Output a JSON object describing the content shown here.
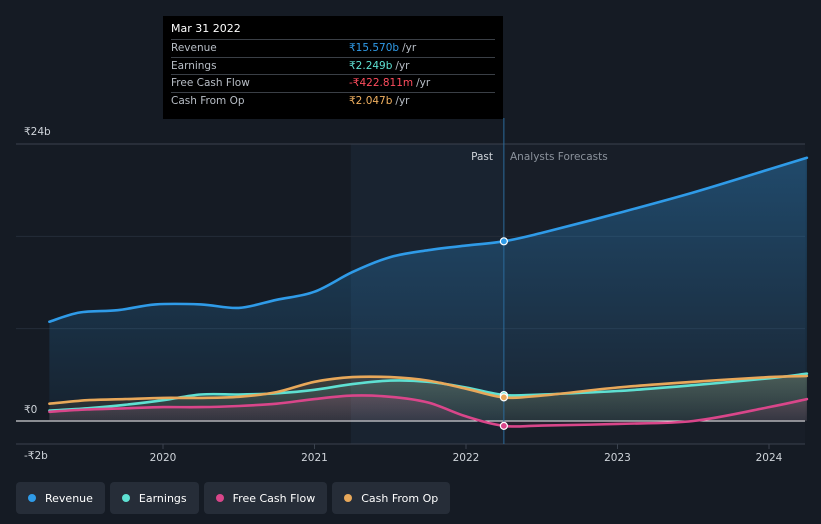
{
  "tooltip": {
    "date": "Mar 31 2022",
    "rows": [
      {
        "label": "Revenue",
        "value": "₹15.570b",
        "unit": "/yr",
        "color": "#2f9be8"
      },
      {
        "label": "Earnings",
        "value": "₹2.249b",
        "unit": "/yr",
        "color": "#5ee0d2"
      },
      {
        "label": "Free Cash Flow",
        "value": "-₹422.811m",
        "unit": "/yr",
        "color": "#ff4d5e"
      },
      {
        "label": "Cash From Op",
        "value": "₹2.047b",
        "unit": "/yr",
        "color": "#f0b060"
      }
    ]
  },
  "labels": {
    "past": "Past",
    "forecast": "Analysts Forecasts"
  },
  "legend": [
    {
      "label": "Revenue",
      "color": "#2f9be8"
    },
    {
      "label": "Earnings",
      "color": "#5ee0d2"
    },
    {
      "label": "Free Cash Flow",
      "color": "#d9468a"
    },
    {
      "label": "Cash From Op",
      "color": "#e8a85a"
    }
  ],
  "chart_data": {
    "type": "line",
    "title": "",
    "xlabel": "",
    "ylabel": "",
    "unit": "₹ billions",
    "ylim": [
      -2,
      24
    ],
    "xlim": [
      2019.25,
      2024.25
    ],
    "y_tick_labels": [
      {
        "value": 24,
        "label": "₹24b"
      },
      {
        "value": 0,
        "label": "₹0"
      },
      {
        "value": -2,
        "label": "-₹2b"
      }
    ],
    "x_tick_labels": [
      {
        "value": 2020,
        "label": "2020"
      },
      {
        "value": 2021,
        "label": "2021"
      },
      {
        "value": 2022,
        "label": "2022"
      },
      {
        "value": 2023,
        "label": "2023"
      },
      {
        "value": 2024,
        "label": "2024"
      }
    ],
    "past_start": 2021.24,
    "past_end": 2022.25,
    "highlight_x": 2022.25,
    "series": [
      {
        "name": "Revenue",
        "color": "#2f9be8",
        "points": [
          [
            2019.25,
            8.6
          ],
          [
            2019.45,
            9.4
          ],
          [
            2019.7,
            9.6
          ],
          [
            2019.95,
            10.1
          ],
          [
            2020.25,
            10.1
          ],
          [
            2020.5,
            9.8
          ],
          [
            2020.75,
            10.5
          ],
          [
            2021.0,
            11.2
          ],
          [
            2021.25,
            12.9
          ],
          [
            2021.5,
            14.2
          ],
          [
            2021.75,
            14.8
          ],
          [
            2022.0,
            15.2
          ],
          [
            2022.25,
            15.57
          ],
          [
            2022.5,
            16.3
          ],
          [
            2023.0,
            18.0
          ],
          [
            2023.5,
            19.8
          ],
          [
            2024.0,
            21.8
          ],
          [
            2024.25,
            22.8
          ]
        ]
      },
      {
        "name": "Earnings",
        "color": "#5ee0d2",
        "points": [
          [
            2019.25,
            0.9
          ],
          [
            2019.5,
            1.1
          ],
          [
            2019.75,
            1.4
          ],
          [
            2020.0,
            1.8
          ],
          [
            2020.25,
            2.3
          ],
          [
            2020.5,
            2.3
          ],
          [
            2020.75,
            2.4
          ],
          [
            2021.0,
            2.7
          ],
          [
            2021.25,
            3.2
          ],
          [
            2021.5,
            3.5
          ],
          [
            2021.75,
            3.4
          ],
          [
            2022.0,
            2.9
          ],
          [
            2022.25,
            2.249
          ],
          [
            2022.5,
            2.3
          ],
          [
            2023.0,
            2.6
          ],
          [
            2023.5,
            3.1
          ],
          [
            2024.0,
            3.7
          ],
          [
            2024.25,
            4.1
          ]
        ]
      },
      {
        "name": "Free Cash Flow",
        "color": "#d9468a",
        "points": [
          [
            2019.25,
            0.8
          ],
          [
            2019.5,
            1.0
          ],
          [
            2019.75,
            1.1
          ],
          [
            2020.0,
            1.2
          ],
          [
            2020.25,
            1.2
          ],
          [
            2020.5,
            1.3
          ],
          [
            2020.75,
            1.5
          ],
          [
            2021.0,
            1.9
          ],
          [
            2021.25,
            2.2
          ],
          [
            2021.5,
            2.1
          ],
          [
            2021.75,
            1.6
          ],
          [
            2022.0,
            0.4
          ],
          [
            2022.25,
            -0.423
          ],
          [
            2022.5,
            -0.4
          ],
          [
            2023.0,
            -0.25
          ],
          [
            2023.5,
            0.0
          ],
          [
            2024.0,
            1.2
          ],
          [
            2024.25,
            1.9
          ]
        ]
      },
      {
        "name": "Cash From Op",
        "color": "#e8a85a",
        "points": [
          [
            2019.25,
            1.5
          ],
          [
            2019.5,
            1.8
          ],
          [
            2019.75,
            1.9
          ],
          [
            2020.0,
            2.0
          ],
          [
            2020.25,
            2.0
          ],
          [
            2020.5,
            2.1
          ],
          [
            2020.75,
            2.5
          ],
          [
            2021.0,
            3.4
          ],
          [
            2021.25,
            3.8
          ],
          [
            2021.5,
            3.8
          ],
          [
            2021.75,
            3.5
          ],
          [
            2022.0,
            2.8
          ],
          [
            2022.25,
            2.047
          ],
          [
            2022.5,
            2.2
          ],
          [
            2023.0,
            2.9
          ],
          [
            2023.5,
            3.4
          ],
          [
            2024.0,
            3.8
          ],
          [
            2024.25,
            3.9
          ]
        ]
      }
    ]
  }
}
